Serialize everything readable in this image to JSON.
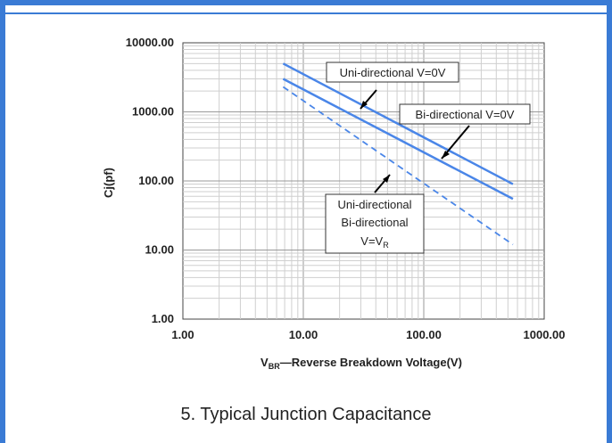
{
  "caption": "5. Typical Junction Capacitance",
  "chart_data": {
    "type": "line",
    "xscale": "log",
    "yscale": "log",
    "xlim": [
      1,
      1000
    ],
    "ylim": [
      1,
      10000
    ],
    "xticks": [
      "1.00",
      "10.00",
      "100.00",
      "1000.00"
    ],
    "yticks": [
      "1.00",
      "10.00",
      "100.00",
      "1000.00",
      "10000.00"
    ],
    "xlabel_prefix": "V",
    "xlabel_sub": "BR",
    "xlabel_rest": "—Reverse Breakdown Voltage(V)",
    "ylabel": "Cj(pf)",
    "grid": true,
    "line_color": "#4a86e8",
    "series": [
      {
        "key": "uni0",
        "style": "solid",
        "x": [
          6.8,
          550
        ],
        "y": [
          5000,
          90
        ]
      },
      {
        "key": "bi0",
        "style": "solid",
        "x": [
          6.8,
          550
        ],
        "y": [
          3000,
          55
        ]
      },
      {
        "key": "vr",
        "style": "dashed",
        "x": [
          6.8,
          550
        ],
        "y": [
          2300,
          12
        ]
      }
    ],
    "annotations": {
      "uni0": {
        "lines": [
          "Uni-directional V=0V"
        ]
      },
      "bi0": {
        "lines": [
          "Bi-directional V=0V"
        ]
      },
      "vr": {
        "lines": [
          "Uni-directional",
          "Bi-directional"
        ],
        "last_prefix": "V=V",
        "last_sub": "R"
      }
    }
  }
}
